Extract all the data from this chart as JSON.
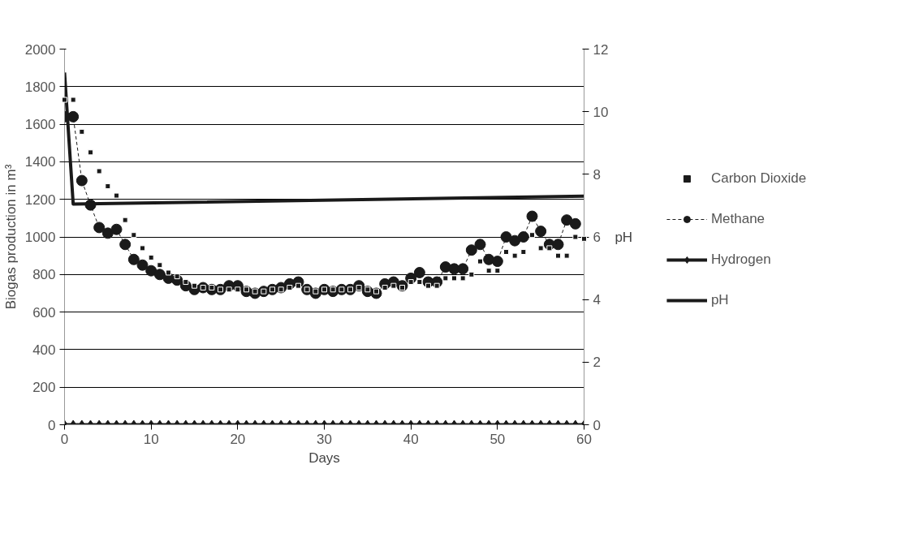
{
  "chart_data": {
    "type": "line",
    "xlabel": "Days",
    "ylabel": "Biogas production in m³",
    "y2label": "pH",
    "x": [
      0,
      1,
      2,
      3,
      4,
      5,
      6,
      7,
      8,
      9,
      10,
      11,
      12,
      13,
      14,
      15,
      16,
      17,
      18,
      19,
      20,
      21,
      22,
      23,
      24,
      25,
      26,
      27,
      28,
      29,
      30,
      31,
      32,
      33,
      34,
      35,
      36,
      37,
      38,
      39,
      40,
      41,
      42,
      43,
      44,
      45,
      46,
      47,
      48,
      49,
      50,
      51,
      52,
      53,
      54,
      55,
      56,
      57,
      58,
      59,
      60
    ],
    "series": [
      {
        "name": "Carbon Dioxide",
        "type": "scatter",
        "marker": "square",
        "color": "#1a1a1a",
        "values": [
          1730,
          1730,
          1560,
          1450,
          1350,
          1270,
          1220,
          1090,
          1010,
          940,
          890,
          850,
          810,
          790,
          760,
          740,
          730,
          730,
          720,
          720,
          720,
          720,
          710,
          710,
          720,
          720,
          730,
          740,
          720,
          710,
          720,
          720,
          720,
          720,
          730,
          720,
          710,
          730,
          740,
          730,
          760,
          760,
          740,
          740,
          780,
          780,
          780,
          800,
          870,
          820,
          820,
          920,
          900,
          920,
          1010,
          940,
          940,
          900,
          900,
          1000,
          990
        ]
      },
      {
        "name": "Methane",
        "marker": "circle",
        "line_style": "dashed",
        "color": "#1a1a1a",
        "values": [
          1640,
          1640,
          1300,
          1170,
          1050,
          1020,
          1040,
          960,
          880,
          850,
          820,
          800,
          780,
          770,
          740,
          720,
          730,
          720,
          720,
          740,
          740,
          710,
          700,
          710,
          720,
          730,
          750,
          760,
          720,
          700,
          720,
          710,
          720,
          720,
          740,
          710,
          700,
          750,
          760,
          740,
          780,
          810,
          760,
          760,
          840,
          830,
          830,
          930,
          960,
          880,
          870,
          1000,
          980,
          1000,
          1110,
          1030,
          960,
          960,
          1090,
          1070,
          null
        ]
      },
      {
        "name": "Hydrogen",
        "marker": "diamond",
        "line_style": "solid",
        "color": "#1a1a1a",
        "values": [
          0,
          0,
          0,
          0,
          0,
          0,
          0,
          0,
          0,
          0,
          0,
          0,
          0,
          0,
          0,
          0,
          0,
          0,
          0,
          0,
          0,
          0,
          0,
          0,
          0,
          0,
          0,
          0,
          0,
          0,
          0,
          0,
          0,
          0,
          0,
          0,
          0,
          0,
          0,
          0,
          0,
          0,
          0,
          0,
          0,
          0,
          0,
          0,
          0,
          0,
          0,
          0,
          0,
          0,
          0,
          0,
          0,
          0,
          0,
          0,
          0
        ]
      },
      {
        "name": "pH",
        "marker": "none",
        "line_style": "solid",
        "axis": "y2",
        "color": "#1a1a1a",
        "x": [
          0,
          1,
          60
        ],
        "values": [
          11.25,
          7.05,
          7.3
        ]
      }
    ],
    "xlim": [
      0,
      60
    ],
    "xticks": [
      0,
      10,
      20,
      30,
      40,
      50,
      60
    ],
    "ylim": [
      0,
      2000
    ],
    "yticks": [
      0,
      200,
      400,
      600,
      800,
      1000,
      1200,
      1400,
      1600,
      1800,
      2000
    ],
    "y2lim": [
      0,
      12
    ],
    "y2ticks": [
      0,
      2,
      4,
      6,
      8,
      10,
      12
    ],
    "grid": "y",
    "legend": "right"
  }
}
